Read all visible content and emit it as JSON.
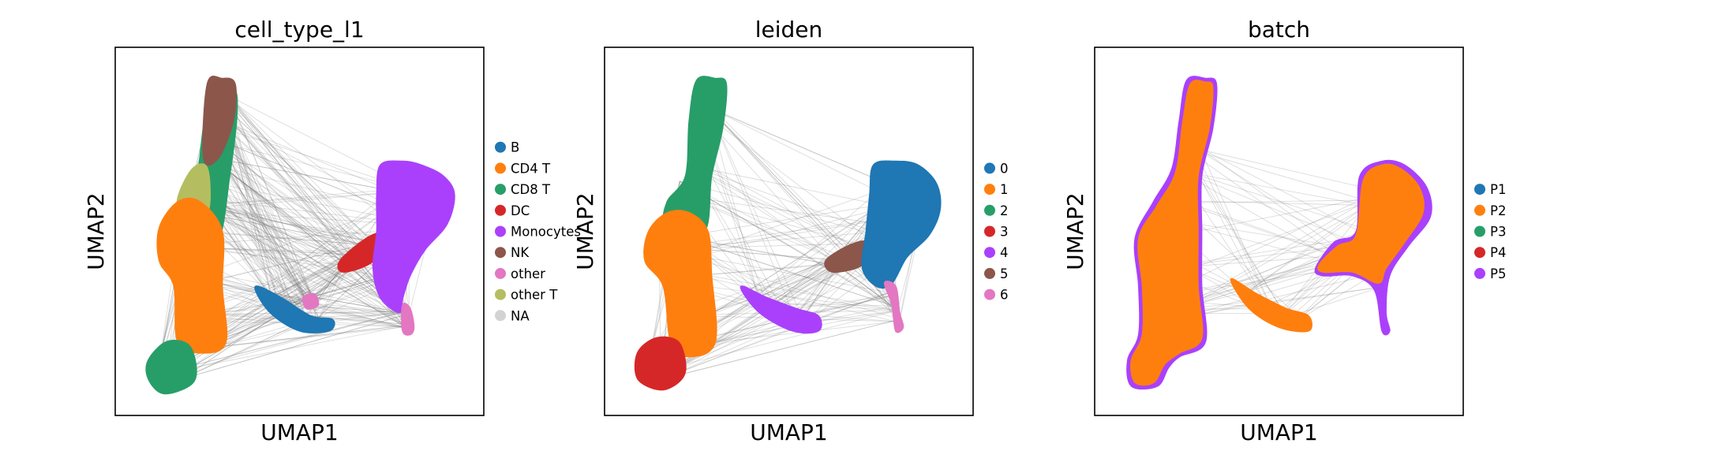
{
  "chart_data": [
    {
      "type": "scatter",
      "title": "cell_type_l1",
      "xlabel": "UMAP1",
      "ylabel": "UMAP2",
      "ticks": false,
      "legend_position": "right",
      "legend": [
        {
          "label": "B",
          "color": "#1f77b4"
        },
        {
          "label": "CD4 T",
          "color": "#ff7f0e"
        },
        {
          "label": "CD8 T",
          "color": "#279e68"
        },
        {
          "label": "DC",
          "color": "#d62728"
        },
        {
          "label": "Monocytes",
          "color": "#aa40fc"
        },
        {
          "label": "NK",
          "color": "#8c564b"
        },
        {
          "label": "other",
          "color": "#e377c2"
        },
        {
          "label": "other T",
          "color": "#b5bd61"
        },
        {
          "label": "NA",
          "color": "#d3d3d3"
        }
      ],
      "clusters": [
        {
          "label": "CD8 T",
          "path": [
            [
              0.26,
              0.12
            ],
            [
              0.32,
              0.11
            ],
            [
              0.33,
              0.18
            ],
            [
              0.31,
              0.35
            ],
            [
              0.28,
              0.52
            ],
            [
              0.22,
              0.48
            ],
            [
              0.23,
              0.3
            ]
          ]
        },
        {
          "label": "NK",
          "path": [
            [
              0.25,
              0.1
            ],
            [
              0.29,
              0.085
            ],
            [
              0.325,
              0.1
            ],
            [
              0.32,
              0.2
            ],
            [
              0.28,
              0.3
            ],
            [
              0.24,
              0.3
            ]
          ]
        },
        {
          "label": "other T",
          "path": [
            [
              0.17,
              0.41
            ],
            [
              0.21,
              0.33
            ],
            [
              0.25,
              0.33
            ],
            [
              0.25,
              0.45
            ],
            [
              0.18,
              0.47
            ]
          ]
        },
        {
          "label": "CD4 T",
          "path": [
            [
              0.12,
              0.49
            ],
            [
              0.17,
              0.42
            ],
            [
              0.23,
              0.42
            ],
            [
              0.29,
              0.5
            ],
            [
              0.29,
              0.65
            ],
            [
              0.3,
              0.8
            ],
            [
              0.24,
              0.83
            ],
            [
              0.17,
              0.8
            ],
            [
              0.16,
              0.65
            ],
            [
              0.12,
              0.58
            ]
          ]
        },
        {
          "label": "CD8 T",
          "path": [
            [
              0.09,
              0.85
            ],
            [
              0.14,
              0.8
            ],
            [
              0.2,
              0.81
            ],
            [
              0.22,
              0.88
            ],
            [
              0.2,
              0.92
            ],
            [
              0.13,
              0.94
            ],
            [
              0.09,
              0.9
            ]
          ]
        },
        {
          "label": "B",
          "path": [
            [
              0.38,
              0.65
            ],
            [
              0.45,
              0.68
            ],
            [
              0.53,
              0.73
            ],
            [
              0.59,
              0.74
            ],
            [
              0.58,
              0.77
            ],
            [
              0.5,
              0.77
            ],
            [
              0.42,
              0.72
            ]
          ]
        },
        {
          "label": "other",
          "path": [
            [
              0.51,
              0.68
            ],
            [
              0.54,
              0.67
            ],
            [
              0.55,
              0.7
            ],
            [
              0.52,
              0.71
            ]
          ]
        },
        {
          "label": "DC",
          "path": [
            [
              0.61,
              0.58
            ],
            [
              0.68,
              0.52
            ],
            [
              0.72,
              0.51
            ],
            [
              0.7,
              0.58
            ],
            [
              0.62,
              0.61
            ]
          ]
        },
        {
          "label": "Monocytes",
          "path": [
            [
              0.72,
              0.32
            ],
            [
              0.78,
              0.31
            ],
            [
              0.83,
              0.32
            ],
            [
              0.89,
              0.35
            ],
            [
              0.92,
              0.4
            ],
            [
              0.9,
              0.48
            ],
            [
              0.84,
              0.55
            ],
            [
              0.8,
              0.62
            ],
            [
              0.78,
              0.68
            ],
            [
              0.77,
              0.72
            ],
            [
              0.72,
              0.68
            ],
            [
              0.7,
              0.6
            ],
            [
              0.71,
              0.5
            ],
            [
              0.71,
              0.4
            ]
          ]
        },
        {
          "label": "other",
          "path": [
            [
              0.78,
              0.7
            ],
            [
              0.8,
              0.71
            ],
            [
              0.81,
              0.76
            ],
            [
              0.8,
              0.78
            ],
            [
              0.78,
              0.77
            ]
          ]
        }
      ]
    },
    {
      "type": "scatter",
      "title": "leiden",
      "xlabel": "UMAP1",
      "ylabel": "UMAP2",
      "ticks": false,
      "legend_position": "right",
      "legend": [
        {
          "label": "0",
          "color": "#1f77b4"
        },
        {
          "label": "1",
          "color": "#ff7f0e"
        },
        {
          "label": "2",
          "color": "#279e68"
        },
        {
          "label": "3",
          "color": "#d62728"
        },
        {
          "label": "4",
          "color": "#aa40fc"
        },
        {
          "label": "5",
          "color": "#8c564b"
        },
        {
          "label": "6",
          "color": "#e377c2"
        }
      ],
      "clusters": [
        {
          "label": "2",
          "path": [
            [
              0.25,
              0.09
            ],
            [
              0.3,
              0.085
            ],
            [
              0.33,
              0.1
            ],
            [
              0.32,
              0.22
            ],
            [
              0.29,
              0.35
            ],
            [
              0.27,
              0.5
            ],
            [
              0.17,
              0.48
            ],
            [
              0.17,
              0.42
            ],
            [
              0.22,
              0.35
            ],
            [
              0.23,
              0.2
            ]
          ]
        },
        {
          "label": "1",
          "path": [
            [
              0.12,
              0.5
            ],
            [
              0.17,
              0.45
            ],
            [
              0.23,
              0.45
            ],
            [
              0.28,
              0.5
            ],
            [
              0.29,
              0.62
            ],
            [
              0.3,
              0.8
            ],
            [
              0.23,
              0.84
            ],
            [
              0.18,
              0.8
            ],
            [
              0.16,
              0.65
            ],
            [
              0.11,
              0.58
            ]
          ]
        },
        {
          "label": "3",
          "path": [
            [
              0.09,
              0.83
            ],
            [
              0.14,
              0.79
            ],
            [
              0.2,
              0.8
            ],
            [
              0.22,
              0.87
            ],
            [
              0.2,
              0.91
            ],
            [
              0.15,
              0.93
            ],
            [
              0.09,
              0.9
            ]
          ]
        },
        {
          "label": "4",
          "path": [
            [
              0.37,
              0.65
            ],
            [
              0.44,
              0.68
            ],
            [
              0.52,
              0.71
            ],
            [
              0.58,
              0.73
            ],
            [
              0.58,
              0.77
            ],
            [
              0.51,
              0.77
            ],
            [
              0.42,
              0.72
            ]
          ]
        },
        {
          "label": "5",
          "path": [
            [
              0.6,
              0.58
            ],
            [
              0.66,
              0.54
            ],
            [
              0.71,
              0.53
            ],
            [
              0.7,
              0.59
            ],
            [
              0.62,
              0.61
            ]
          ]
        },
        {
          "label": "0",
          "path": [
            [
              0.73,
              0.32
            ],
            [
              0.79,
              0.31
            ],
            [
              0.85,
              0.32
            ],
            [
              0.9,
              0.37
            ],
            [
              0.91,
              0.44
            ],
            [
              0.88,
              0.51
            ],
            [
              0.82,
              0.57
            ],
            [
              0.78,
              0.64
            ],
            [
              0.74,
              0.65
            ],
            [
              0.7,
              0.6
            ],
            [
              0.71,
              0.5
            ],
            [
              0.72,
              0.4
            ]
          ]
        },
        {
          "label": "6",
          "path": [
            [
              0.76,
              0.64
            ],
            [
              0.79,
              0.65
            ],
            [
              0.8,
              0.72
            ],
            [
              0.81,
              0.76
            ],
            [
              0.79,
              0.77
            ],
            [
              0.78,
              0.7
            ]
          ]
        }
      ]
    },
    {
      "type": "scatter",
      "title": "batch",
      "xlabel": "UMAP1",
      "ylabel": "UMAP2",
      "ticks": false,
      "legend_position": "right",
      "legend": [
        {
          "label": "P1",
          "color": "#1f77b4"
        },
        {
          "label": "P2",
          "color": "#ff7f0e"
        },
        {
          "label": "P3",
          "color": "#279e68"
        },
        {
          "label": "P4",
          "color": "#d62728"
        },
        {
          "label": "P5",
          "color": "#aa40fc"
        }
      ],
      "clusters": [
        {
          "label": "P5",
          "path": [
            [
              0.25,
              0.09
            ],
            [
              0.3,
              0.085
            ],
            [
              0.33,
              0.1
            ],
            [
              0.32,
              0.22
            ],
            [
              0.29,
              0.35
            ],
            [
              0.29,
              0.5
            ],
            [
              0.29,
              0.65
            ],
            [
              0.3,
              0.8
            ],
            [
              0.23,
              0.84
            ],
            [
              0.2,
              0.87
            ],
            [
              0.17,
              0.92
            ],
            [
              0.1,
              0.92
            ],
            [
              0.09,
              0.85
            ],
            [
              0.12,
              0.78
            ],
            [
              0.12,
              0.65
            ],
            [
              0.11,
              0.52
            ],
            [
              0.16,
              0.42
            ],
            [
              0.21,
              0.33
            ],
            [
              0.23,
              0.2
            ]
          ]
        },
        {
          "label": "P2",
          "path": [
            [
              0.26,
              0.1
            ],
            [
              0.3,
              0.095
            ],
            [
              0.32,
              0.11
            ],
            [
              0.31,
              0.22
            ],
            [
              0.28,
              0.35
            ],
            [
              0.28,
              0.5
            ],
            [
              0.28,
              0.65
            ],
            [
              0.29,
              0.79
            ],
            [
              0.23,
              0.83
            ],
            [
              0.19,
              0.86
            ],
            [
              0.16,
              0.91
            ],
            [
              0.11,
              0.91
            ],
            [
              0.1,
              0.85
            ],
            [
              0.13,
              0.78
            ],
            [
              0.13,
              0.65
            ],
            [
              0.12,
              0.52
            ],
            [
              0.17,
              0.43
            ],
            [
              0.22,
              0.34
            ],
            [
              0.24,
              0.2
            ]
          ]
        },
        {
          "label": "P2",
          "path": [
            [
              0.37,
              0.63
            ],
            [
              0.44,
              0.67
            ],
            [
              0.52,
              0.71
            ],
            [
              0.58,
              0.73
            ],
            [
              0.58,
              0.77
            ],
            [
              0.5,
              0.76
            ],
            [
              0.42,
              0.71
            ]
          ]
        },
        {
          "label": "P5",
          "path": [
            [
              0.6,
              0.6
            ],
            [
              0.65,
              0.53
            ],
            [
              0.71,
              0.5
            ],
            [
              0.72,
              0.35
            ],
            [
              0.78,
              0.31
            ],
            [
              0.84,
              0.32
            ],
            [
              0.9,
              0.38
            ],
            [
              0.91,
              0.46
            ],
            [
              0.85,
              0.54
            ],
            [
              0.8,
              0.62
            ],
            [
              0.79,
              0.72
            ],
            [
              0.8,
              0.77
            ],
            [
              0.78,
              0.77
            ],
            [
              0.76,
              0.66
            ],
            [
              0.7,
              0.62
            ],
            [
              0.62,
              0.62
            ]
          ]
        },
        {
          "label": "P2",
          "path": [
            [
              0.61,
              0.59
            ],
            [
              0.66,
              0.54
            ],
            [
              0.71,
              0.51
            ],
            [
              0.73,
              0.36
            ],
            [
              0.78,
              0.32
            ],
            [
              0.83,
              0.33
            ],
            [
              0.88,
              0.38
            ],
            [
              0.89,
              0.45
            ],
            [
              0.84,
              0.53
            ],
            [
              0.79,
              0.6
            ],
            [
              0.77,
              0.64
            ],
            [
              0.7,
              0.61
            ],
            [
              0.62,
              0.61
            ]
          ]
        }
      ]
    }
  ]
}
